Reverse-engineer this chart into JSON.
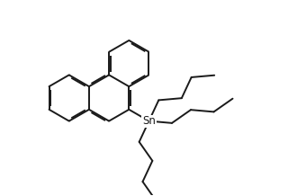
{
  "bg_color": "#ffffff",
  "line_color": "#1a1a1a",
  "lw": 1.4,
  "dbo": 0.06,
  "Sn_label": "Sn",
  "Sn_fontsize": 8.5,
  "xlim": [
    -1.5,
    8.0
  ],
  "ylim": [
    -4.2,
    4.2
  ]
}
